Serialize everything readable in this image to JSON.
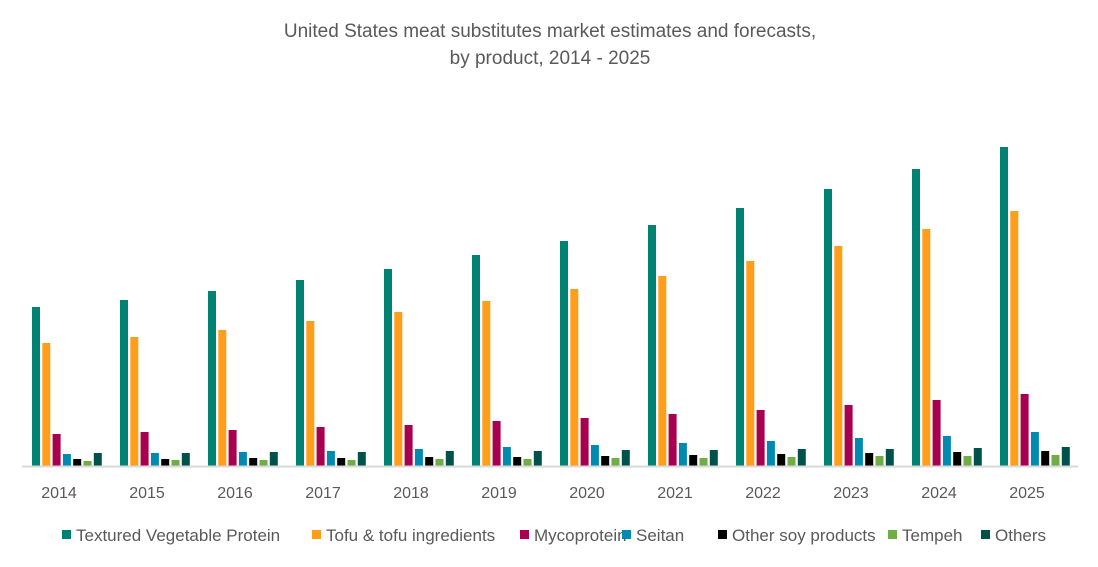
{
  "chart_data": {
    "type": "bar",
    "title": [
      "United States meat substitutes market estimates and forecasts,",
      "by product, 2014 - 2025"
    ],
    "xlabel": "",
    "ylabel": "",
    "ylim": [
      0,
      340
    ],
    "grid": false,
    "legend_position": "bottom",
    "categories": [
      "2014",
      "2015",
      "2016",
      "2017",
      "2018",
      "2019",
      "2020",
      "2021",
      "2022",
      "2023",
      "2024",
      "2025"
    ],
    "series": [
      {
        "name": "Textured Vegetable Protein",
        "color": "#008272",
        "values": [
          159,
          166,
          175,
          186,
          197,
          211,
          225,
          241,
          258,
          277,
          297,
          319
        ]
      },
      {
        "name": "Tofu & tofu ingredients",
        "color": "#FF9E1B",
        "values": [
          123,
          129,
          136,
          145,
          154,
          165,
          177,
          190,
          205,
          220,
          237,
          255
        ]
      },
      {
        "name": "Mycoprotein",
        "color": "#A8004F",
        "values": [
          32,
          34,
          36,
          39,
          41,
          45,
          48,
          52,
          56,
          61,
          66,
          72
        ]
      },
      {
        "name": "Seitan",
        "color": "#008AB0",
        "values": [
          12,
          13,
          14,
          15,
          17,
          19,
          21,
          23,
          25,
          28,
          30,
          34
        ]
      },
      {
        "name": "Other soy products",
        "color": "#000000",
        "values": [
          7,
          7,
          8,
          8,
          9,
          9,
          10,
          11,
          12,
          13,
          14,
          15
        ]
      },
      {
        "name": "Tempeh",
        "color": "#70AD47",
        "values": [
          5,
          6,
          6,
          6,
          7,
          7,
          8,
          8,
          9,
          10,
          10,
          11
        ]
      },
      {
        "name": "Others",
        "color": "#00524A",
        "values": [
          13,
          13,
          14,
          14,
          15,
          15,
          16,
          16,
          17,
          17,
          18,
          19
        ]
      }
    ]
  }
}
